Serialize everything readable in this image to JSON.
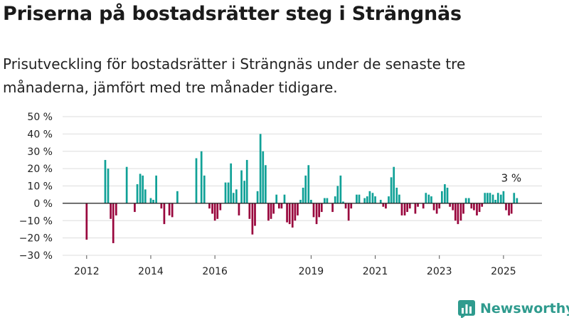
{
  "title": "Priserna på bostadsrätter steg i Strängnäs",
  "subtitle": "Prisutveckling för bostadsrätter i Strängnäs under de senaste tre månaderna, jämfört med tre månader tidigare.",
  "brand": {
    "name": "Newsworthy",
    "icon": "newsworthy-logo-icon"
  },
  "colors": {
    "positive": "#10a197",
    "negative": "#99063d",
    "grid": "#dddddd",
    "text": "#222222",
    "brand": "#2f9b8e"
  },
  "chart_data": {
    "type": "bar",
    "title": "",
    "xlabel": "",
    "ylabel": "",
    "ylim": [
      -30,
      50
    ],
    "yticks": [
      -30,
      -20,
      -10,
      0,
      10,
      20,
      30,
      40,
      50
    ],
    "ytick_labels": [
      "−30 %",
      "−20 %",
      "−10 %",
      "0 %",
      "10 %",
      "20 %",
      "30 %",
      "40 %",
      "50 %"
    ],
    "xticks": [
      {
        "label": "2012",
        "x": 2012.0
      },
      {
        "label": "2014",
        "x": 2014.0
      },
      {
        "label": "2016",
        "x": 2016.0
      },
      {
        "label": "2019",
        "x": 2019.0
      },
      {
        "label": "2021",
        "x": 2021.0
      },
      {
        "label": "2023",
        "x": 2023.0
      },
      {
        "label": "2025",
        "x": 2025.0
      }
    ],
    "annotation": {
      "text": "3 %",
      "x": 2025.2,
      "y": 3
    },
    "grid": true,
    "legend": "none",
    "bars": [
      {
        "x": 2012.0,
        "y": -21
      },
      {
        "x": 2012.58,
        "y": 25
      },
      {
        "x": 2012.67,
        "y": 20
      },
      {
        "x": 2012.75,
        "y": -9
      },
      {
        "x": 2012.83,
        "y": -23
      },
      {
        "x": 2012.92,
        "y": -7
      },
      {
        "x": 2013.25,
        "y": 21
      },
      {
        "x": 2013.5,
        "y": -5
      },
      {
        "x": 2013.58,
        "y": 11
      },
      {
        "x": 2013.67,
        "y": 17
      },
      {
        "x": 2013.75,
        "y": 16
      },
      {
        "x": 2013.83,
        "y": 8
      },
      {
        "x": 2014.0,
        "y": 3
      },
      {
        "x": 2014.08,
        "y": 2
      },
      {
        "x": 2014.17,
        "y": 16
      },
      {
        "x": 2014.33,
        "y": -3
      },
      {
        "x": 2014.42,
        "y": -12
      },
      {
        "x": 2014.58,
        "y": -7
      },
      {
        "x": 2014.67,
        "y": -8
      },
      {
        "x": 2014.83,
        "y": 7
      },
      {
        "x": 2015.42,
        "y": 26
      },
      {
        "x": 2015.58,
        "y": 30
      },
      {
        "x": 2015.67,
        "y": 16
      },
      {
        "x": 2015.83,
        "y": -3
      },
      {
        "x": 2015.92,
        "y": -6
      },
      {
        "x": 2016.0,
        "y": -10
      },
      {
        "x": 2016.08,
        "y": -9
      },
      {
        "x": 2016.17,
        "y": -4
      },
      {
        "x": 2016.33,
        "y": 12
      },
      {
        "x": 2016.42,
        "y": 12
      },
      {
        "x": 2016.5,
        "y": 23
      },
      {
        "x": 2016.58,
        "y": 6
      },
      {
        "x": 2016.67,
        "y": 8
      },
      {
        "x": 2016.75,
        "y": -7
      },
      {
        "x": 2016.83,
        "y": 19
      },
      {
        "x": 2016.92,
        "y": 13
      },
      {
        "x": 2017.0,
        "y": 25
      },
      {
        "x": 2017.08,
        "y": -9
      },
      {
        "x": 2017.17,
        "y": -18
      },
      {
        "x": 2017.25,
        "y": -13
      },
      {
        "x": 2017.33,
        "y": 7
      },
      {
        "x": 2017.42,
        "y": 40
      },
      {
        "x": 2017.5,
        "y": 30
      },
      {
        "x": 2017.58,
        "y": 22
      },
      {
        "x": 2017.67,
        "y": -10
      },
      {
        "x": 2017.75,
        "y": -9
      },
      {
        "x": 2017.83,
        "y": -6
      },
      {
        "x": 2017.92,
        "y": 5
      },
      {
        "x": 2018.0,
        "y": -3
      },
      {
        "x": 2018.08,
        "y": -3
      },
      {
        "x": 2018.17,
        "y": 5
      },
      {
        "x": 2018.25,
        "y": -11
      },
      {
        "x": 2018.33,
        "y": -12
      },
      {
        "x": 2018.42,
        "y": -14
      },
      {
        "x": 2018.5,
        "y": -10
      },
      {
        "x": 2018.58,
        "y": -7
      },
      {
        "x": 2018.67,
        "y": 2
      },
      {
        "x": 2018.75,
        "y": 9
      },
      {
        "x": 2018.83,
        "y": 16
      },
      {
        "x": 2018.92,
        "y": 22
      },
      {
        "x": 2019.0,
        "y": 2
      },
      {
        "x": 2019.08,
        "y": -8
      },
      {
        "x": 2019.17,
        "y": -12
      },
      {
        "x": 2019.25,
        "y": -8
      },
      {
        "x": 2019.33,
        "y": -5
      },
      {
        "x": 2019.42,
        "y": 3
      },
      {
        "x": 2019.5,
        "y": 3
      },
      {
        "x": 2019.67,
        "y": -5
      },
      {
        "x": 2019.75,
        "y": 4
      },
      {
        "x": 2019.83,
        "y": 10
      },
      {
        "x": 2019.92,
        "y": 16
      },
      {
        "x": 2020.0,
        "y": 1
      },
      {
        "x": 2020.08,
        "y": -3
      },
      {
        "x": 2020.17,
        "y": -10
      },
      {
        "x": 2020.25,
        "y": -3
      },
      {
        "x": 2020.42,
        "y": 5
      },
      {
        "x": 2020.5,
        "y": 5
      },
      {
        "x": 2020.67,
        "y": 3
      },
      {
        "x": 2020.75,
        "y": 4
      },
      {
        "x": 2020.83,
        "y": 7
      },
      {
        "x": 2020.92,
        "y": 6
      },
      {
        "x": 2021.0,
        "y": 4
      },
      {
        "x": 2021.17,
        "y": 2
      },
      {
        "x": 2021.25,
        "y": -2
      },
      {
        "x": 2021.33,
        "y": -3
      },
      {
        "x": 2021.42,
        "y": 4
      },
      {
        "x": 2021.5,
        "y": 15
      },
      {
        "x": 2021.58,
        "y": 21
      },
      {
        "x": 2021.67,
        "y": 9
      },
      {
        "x": 2021.75,
        "y": 5
      },
      {
        "x": 2021.83,
        "y": -7
      },
      {
        "x": 2021.92,
        "y": -7
      },
      {
        "x": 2022.0,
        "y": -5
      },
      {
        "x": 2022.08,
        "y": -3
      },
      {
        "x": 2022.25,
        "y": -6
      },
      {
        "x": 2022.33,
        "y": -2
      },
      {
        "x": 2022.5,
        "y": -3
      },
      {
        "x": 2022.58,
        "y": 6
      },
      {
        "x": 2022.67,
        "y": 5
      },
      {
        "x": 2022.75,
        "y": 4
      },
      {
        "x": 2022.83,
        "y": -4
      },
      {
        "x": 2022.92,
        "y": -6
      },
      {
        "x": 2023.0,
        "y": -3
      },
      {
        "x": 2023.08,
        "y": 7
      },
      {
        "x": 2023.17,
        "y": 11
      },
      {
        "x": 2023.25,
        "y": 9
      },
      {
        "x": 2023.33,
        "y": -2
      },
      {
        "x": 2023.42,
        "y": -4
      },
      {
        "x": 2023.5,
        "y": -10
      },
      {
        "x": 2023.58,
        "y": -12
      },
      {
        "x": 2023.67,
        "y": -10
      },
      {
        "x": 2023.75,
        "y": -6
      },
      {
        "x": 2023.83,
        "y": 3
      },
      {
        "x": 2023.92,
        "y": 3
      },
      {
        "x": 2024.0,
        "y": -3
      },
      {
        "x": 2024.08,
        "y": -4
      },
      {
        "x": 2024.17,
        "y": -7
      },
      {
        "x": 2024.25,
        "y": -5
      },
      {
        "x": 2024.33,
        "y": -2
      },
      {
        "x": 2024.42,
        "y": 6
      },
      {
        "x": 2024.5,
        "y": 6
      },
      {
        "x": 2024.58,
        "y": 6
      },
      {
        "x": 2024.67,
        "y": 5
      },
      {
        "x": 2024.75,
        "y": 2
      },
      {
        "x": 2024.83,
        "y": 6
      },
      {
        "x": 2024.92,
        "y": 5
      },
      {
        "x": 2025.0,
        "y": 7
      },
      {
        "x": 2025.08,
        "y": -4
      },
      {
        "x": 2025.17,
        "y": -7
      },
      {
        "x": 2025.25,
        "y": -6
      },
      {
        "x": 2025.33,
        "y": 6
      },
      {
        "x": 2025.42,
        "y": 3
      }
    ]
  }
}
